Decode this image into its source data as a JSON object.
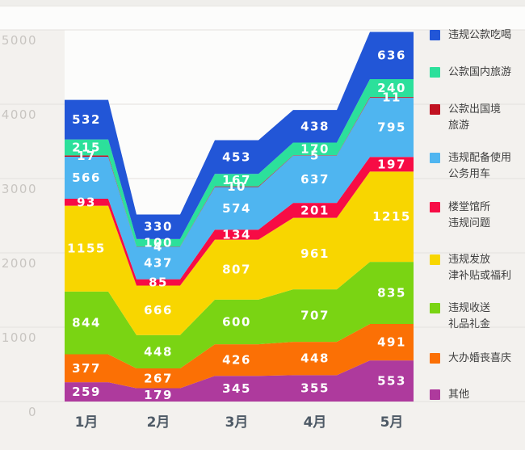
{
  "chart_data": {
    "type": "area",
    "stacked": true,
    "title": "",
    "xlabel": "",
    "ylabel": "",
    "categories": [
      "1月",
      "2月",
      "3月",
      "4月",
      "5月"
    ],
    "y_ticks": [
      0,
      1000,
      2000,
      3000,
      4000,
      5000
    ],
    "ylim": [
      0,
      5500
    ],
    "grid": true,
    "legend_position": "right",
    "series": [
      {
        "name": "违规公款吃喝",
        "color": "#2256d7",
        "values": [
          532,
          330,
          453,
          438,
          636
        ]
      },
      {
        "name": "公款国内旅游",
        "color": "#2ce09b",
        "values": [
          215,
          100,
          167,
          170,
          240
        ]
      },
      {
        "name": "公款出国境旅游",
        "color": "#c11221",
        "values": [
          17,
          4,
          10,
          5,
          11
        ]
      },
      {
        "name": "违规配备使用公务用车",
        "color": "#4fb5f0",
        "values": [
          566,
          437,
          574,
          637,
          795
        ]
      },
      {
        "name": "楼堂馆所违规问题",
        "color": "#f70c45",
        "values": [
          93,
          85,
          134,
          201,
          197
        ]
      },
      {
        "name": "违规发放津补贴或福利",
        "color": "#f8d600",
        "values": [
          1155,
          666,
          807,
          961,
          1215
        ]
      },
      {
        "name": "违规收送礼品礼金",
        "color": "#7ad413",
        "values": [
          844,
          448,
          600,
          707,
          835
        ]
      },
      {
        "name": "大办婚丧喜庆",
        "color": "#fb7005",
        "values": [
          377,
          267,
          426,
          448,
          491
        ]
      },
      {
        "name": "其他",
        "color": "#ae3a9d",
        "values": [
          259,
          179,
          345,
          355,
          553
        ]
      }
    ]
  },
  "legend": {
    "items": [
      {
        "label": "违规公款吃喝"
      },
      {
        "label": "公款国内旅游"
      },
      {
        "label": "公款出国境\n旅游"
      },
      {
        "label": "违规配备使用\n公务用车"
      },
      {
        "label": "楼堂馆所\n违规问题"
      },
      {
        "label": "违规发放\n津补贴或福利"
      },
      {
        "label": "违规收送\n礼品礼金"
      },
      {
        "label": "大办婚丧喜庆"
      },
      {
        "label": "其他"
      }
    ]
  },
  "colors": {
    "page_background": "#f3f1ee",
    "plot_background": "#fcfcfb",
    "top_strip": "#efeeeb",
    "gridline": "#e3e1dd",
    "hairline": "#e0ded9",
    "y_tick_label": "#c8c5c1",
    "x_tick_label": "#4e5a66",
    "value_label": "#ffffff",
    "legend_text": "#3e3e3e"
  }
}
